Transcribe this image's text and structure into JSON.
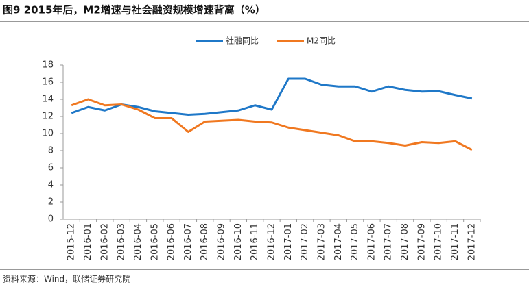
{
  "chart_data": {
    "type": "line",
    "title": "图9  2015年后，M2增速与社会融资规模增速背离（%）",
    "source": "资料来源：Wind，联储证券研究院",
    "categories": [
      "2015-12",
      "2016-01",
      "2016-02",
      "2016-03",
      "2016-04",
      "2016-05",
      "2016-06",
      "2016-07",
      "2016-08",
      "2016-09",
      "2016-10",
      "2016-11",
      "2016-12",
      "2017-01",
      "2017-02",
      "2017-03",
      "2017-04",
      "2017-05",
      "2017-06",
      "2017-07",
      "2017-08",
      "2017-09",
      "2017-10",
      "2017-11",
      "2017-12"
    ],
    "series": [
      {
        "name": "社融同比",
        "color": "#1f78c8",
        "values": [
          12.4,
          13.1,
          12.7,
          13.4,
          13.1,
          12.6,
          12.4,
          12.2,
          12.3,
          12.5,
          12.7,
          13.3,
          12.8,
          16.4,
          16.4,
          15.7,
          15.5,
          15.5,
          14.9,
          15.5,
          15.1,
          14.9,
          14.95,
          14.5,
          14.1
        ]
      },
      {
        "name": "M2同比",
        "color": "#f07820",
        "values": [
          13.3,
          14.0,
          13.3,
          13.4,
          12.8,
          11.8,
          11.8,
          10.2,
          11.4,
          11.5,
          11.6,
          11.4,
          11.3,
          10.7,
          10.4,
          10.1,
          9.8,
          9.1,
          9.1,
          8.9,
          8.6,
          9.0,
          8.9,
          9.1,
          8.1
        ]
      }
    ],
    "ylim": [
      0,
      18
    ],
    "yticks": [
      0,
      2,
      4,
      6,
      8,
      10,
      12,
      14,
      16,
      18
    ],
    "grid": false,
    "legend": "top"
  }
}
